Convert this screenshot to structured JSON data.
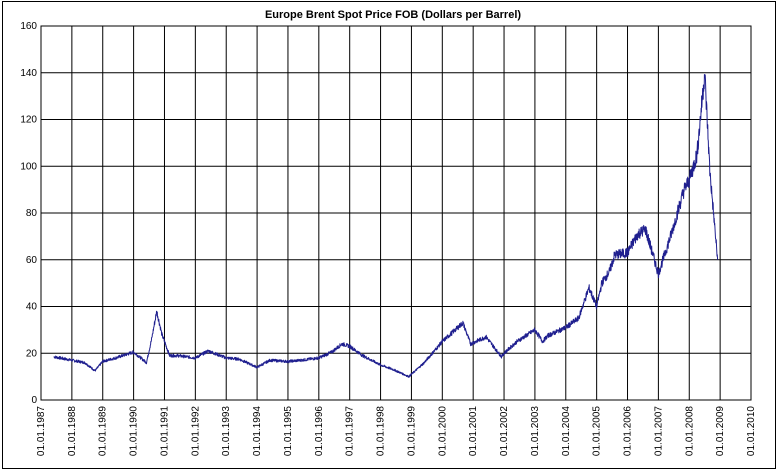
{
  "chart_data": {
    "type": "line",
    "title": "Europe Brent Spot Price FOB (Dollars per Barrel)",
    "xlabel": "",
    "ylabel": "",
    "ylim": [
      0,
      160
    ],
    "yticks": [
      "0",
      "20",
      "40",
      "60",
      "80",
      "100",
      "120",
      "140",
      "160"
    ],
    "xticks": [
      "01.01.1987",
      "01.01.1988",
      "01.01.1989",
      "01.01.1990",
      "01.01.1991",
      "01.01.1992",
      "01.01.1993",
      "01.01.1994",
      "01.01.1995",
      "01.01.1996",
      "01.01.1997",
      "01.01.1998",
      "01.01.1999",
      "01.01.2000",
      "01.01.2001",
      "01.01.2002",
      "01.01.2003",
      "01.01.2004",
      "01.01.2005",
      "01.01.2006",
      "01.01.2007",
      "01.01.2008",
      "01.01.2009",
      "01.01.2010"
    ],
    "xlim": [
      "1987-01-01",
      "2010-01-01"
    ],
    "grid": true,
    "legend": "none",
    "series_color": "#1f1f8f",
    "series": [
      {
        "x": [
          "1987-06",
          "1988-01",
          "1988-06",
          "1988-10",
          "1989-01",
          "1989-06",
          "1990-01",
          "1990-06",
          "1990-08",
          "1990-10",
          "1990-12",
          "1991-03",
          "1991-06",
          "1992-01",
          "1992-06",
          "1993-01",
          "1993-06",
          "1994-01",
          "1994-06",
          "1995-01",
          "1995-06",
          "1996-01",
          "1996-06",
          "1996-10",
          "1997-01",
          "1997-06",
          "1998-01",
          "1998-06",
          "1998-12",
          "1999-01",
          "1999-06",
          "2000-01",
          "2000-06",
          "2000-09",
          "2000-12",
          "2001-06",
          "2001-12",
          "2002-01",
          "2002-06",
          "2003-01",
          "2003-04",
          "2003-06",
          "2004-01",
          "2004-06",
          "2004-10",
          "2005-01",
          "2005-03",
          "2005-06",
          "2005-08",
          "2006-01",
          "2006-05",
          "2006-08",
          "2007-01",
          "2007-06",
          "2007-11",
          "2008-01",
          "2008-04",
          "2008-07",
          "2008-09",
          "2008-12"
        ],
        "y": [
          18.5,
          17.0,
          16.0,
          12.5,
          16.5,
          18.0,
          20.5,
          16.0,
          26.0,
          38.0,
          28.0,
          19.0,
          19.0,
          18.0,
          21.0,
          18.0,
          17.5,
          14.0,
          17.0,
          16.5,
          17.0,
          18.0,
          20.5,
          24.0,
          23.0,
          19.0,
          15.0,
          13.0,
          10.0,
          11.0,
          16.0,
          25.0,
          30.0,
          33.0,
          24.0,
          27.0,
          18.5,
          20.0,
          25.0,
          30.0,
          25.0,
          27.5,
          31.0,
          35.0,
          48.0,
          40.0,
          50.0,
          55.0,
          62.0,
          63.0,
          71.0,
          73.0,
          54.0,
          71.0,
          90.0,
          94.0,
          105.0,
          140.0,
          98.0,
          60.0
        ]
      }
    ]
  }
}
